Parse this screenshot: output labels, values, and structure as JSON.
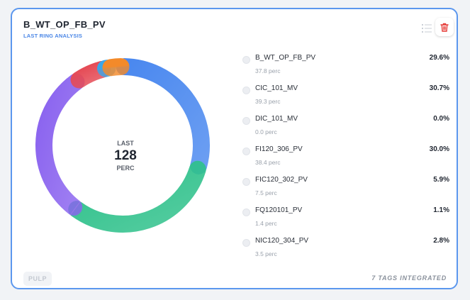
{
  "card": {
    "title": "B_WT_OP_FB_PV",
    "subtitle": "LAST RING ANALYSIS",
    "center_top": "LAST",
    "center_value": "128",
    "center_bottom": "PERC",
    "pulp_label": "PULP",
    "footer": "7 TAGS INTEGRATED"
  },
  "icons": {
    "list": "list-icon",
    "delete": "trash-icon"
  },
  "colors": {
    "accent": "#5b97ee",
    "delete": "#e53935"
  },
  "legend": [
    {
      "name": "B_WT_OP_FB_PV",
      "pct": "29.6%",
      "sub": "37.8 perc"
    },
    {
      "name": "CIC_101_MV",
      "pct": "30.7%",
      "sub": "39.3 perc"
    },
    {
      "name": "DIC_101_MV",
      "pct": "0.0%",
      "sub": "0.0 perc"
    },
    {
      "name": "FI120_306_PV",
      "pct": "30.0%",
      "sub": "38.4 perc"
    },
    {
      "name": "FIC120_302_PV",
      "pct": "5.9%",
      "sub": "7.5 perc"
    },
    {
      "name": "FQ120101_PV",
      "pct": "1.1%",
      "sub": "1.4 perc"
    },
    {
      "name": "NIC120_304_PV",
      "pct": "2.8%",
      "sub": "3.5 perc"
    }
  ],
  "chart_data": {
    "type": "pie",
    "categories": [
      "B_WT_OP_FB_PV",
      "CIC_101_MV",
      "DIC_101_MV",
      "FI120_306_PV",
      "FIC120_302_PV",
      "FQ120101_PV",
      "NIC120_304_PV"
    ],
    "values": [
      37.8,
      39.3,
      0.0,
      38.4,
      7.5,
      1.4,
      3.5
    ],
    "percentages": [
      29.6,
      30.7,
      0.0,
      30.0,
      5.9,
      1.1,
      2.8
    ],
    "colors": [
      "#4a88ef",
      "#2fc18b",
      "#cccccc",
      "#8a63ef",
      "#e54a55",
      "#3ba6e8",
      "#f38a2a"
    ],
    "donut": true,
    "legend": "right"
  }
}
